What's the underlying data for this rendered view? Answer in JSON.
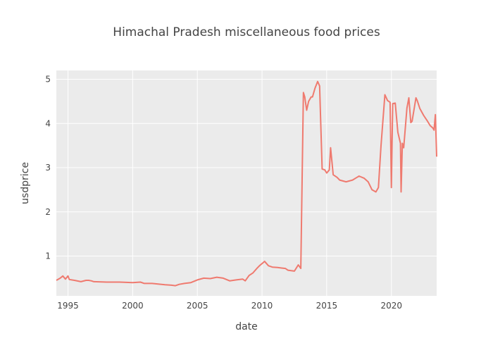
{
  "chart_data": {
    "type": "line",
    "title": "Himachal Pradesh miscellaneous food prices",
    "xlabel": "date",
    "ylabel": "usdprice",
    "x_range": [
      1994.1,
      2023.5
    ],
    "ylim": [
      0.1,
      5.2
    ],
    "x_ticks": [
      1995,
      2000,
      2005,
      2010,
      2015,
      2020
    ],
    "x_tick_labels": [
      "1995",
      "2000",
      "2005",
      "2010",
      "2015",
      "2020"
    ],
    "y_ticks": [
      1,
      2,
      3,
      4,
      5
    ],
    "y_tick_labels": [
      "1",
      "2",
      "3",
      "4",
      "5"
    ],
    "grid": true,
    "legend": "none",
    "colors": {
      "line": "#ef7a6f",
      "plot_bg": "#ebebeb",
      "grid": "#ffffff",
      "text": "#444444"
    },
    "series": [
      {
        "x": [
          1994.1,
          1994.4,
          1994.6,
          1994.8,
          1995.0,
          1995.1,
          1995.5,
          1996.0,
          1996.4,
          1996.6,
          1996.8,
          1997.0,
          1998.0,
          1999.0,
          2000.0,
          2000.6,
          2000.9,
          2001.5,
          2002.5,
          2003.0,
          2003.3,
          2003.6,
          2004.0,
          2004.5,
          2005.0,
          2005.5,
          2006.0,
          2006.5,
          2007.0,
          2007.5,
          2008.0,
          2008.5,
          2008.7,
          2009.0,
          2009.3,
          2009.6,
          2009.8,
          2010.0,
          2010.2,
          2010.5,
          2010.8,
          2011.2,
          2011.5,
          2011.8,
          2012.0,
          2012.5,
          2012.8,
          2013.0,
          2013.2,
          2013.3,
          2013.45,
          2013.6,
          2013.8,
          2013.9,
          2014.1,
          2014.3,
          2014.45,
          2014.65,
          2014.85,
          2015.0,
          2015.2,
          2015.3,
          2015.5,
          2015.8,
          2016.0,
          2016.5,
          2017.0,
          2017.5,
          2017.9,
          2018.2,
          2018.5,
          2018.8,
          2019.0,
          2019.2,
          2019.5,
          2019.7,
          2019.9,
          2020.0,
          2020.1,
          2020.3,
          2020.5,
          2020.7,
          2020.75,
          2020.85,
          2020.95,
          2021.2,
          2021.35,
          2021.5,
          2021.6,
          2021.9,
          2022.0,
          2022.2,
          2022.5,
          2022.8,
          2023.0,
          2023.2,
          2023.3,
          2023.4,
          2023.5
        ],
        "y": [
          0.45,
          0.5,
          0.55,
          0.48,
          0.55,
          0.47,
          0.45,
          0.42,
          0.45,
          0.45,
          0.44,
          0.42,
          0.41,
          0.41,
          0.4,
          0.41,
          0.38,
          0.38,
          0.35,
          0.34,
          0.33,
          0.36,
          0.38,
          0.4,
          0.46,
          0.5,
          0.49,
          0.52,
          0.5,
          0.44,
          0.46,
          0.48,
          0.44,
          0.56,
          0.62,
          0.72,
          0.78,
          0.83,
          0.88,
          0.78,
          0.75,
          0.74,
          0.73,
          0.72,
          0.68,
          0.66,
          0.8,
          0.72,
          4.7,
          4.6,
          4.3,
          4.5,
          4.6,
          4.6,
          4.8,
          4.95,
          4.85,
          2.97,
          2.95,
          2.88,
          2.95,
          3.45,
          2.84,
          2.78,
          2.72,
          2.68,
          2.72,
          2.81,
          2.76,
          2.68,
          2.5,
          2.45,
          2.55,
          3.5,
          4.65,
          4.52,
          4.48,
          2.55,
          4.45,
          4.46,
          3.8,
          3.55,
          2.45,
          3.55,
          3.45,
          4.35,
          4.58,
          4.02,
          4.05,
          4.58,
          4.52,
          4.34,
          4.18,
          4.05,
          3.95,
          3.9,
          3.85,
          4.2,
          3.25
        ]
      }
    ]
  }
}
